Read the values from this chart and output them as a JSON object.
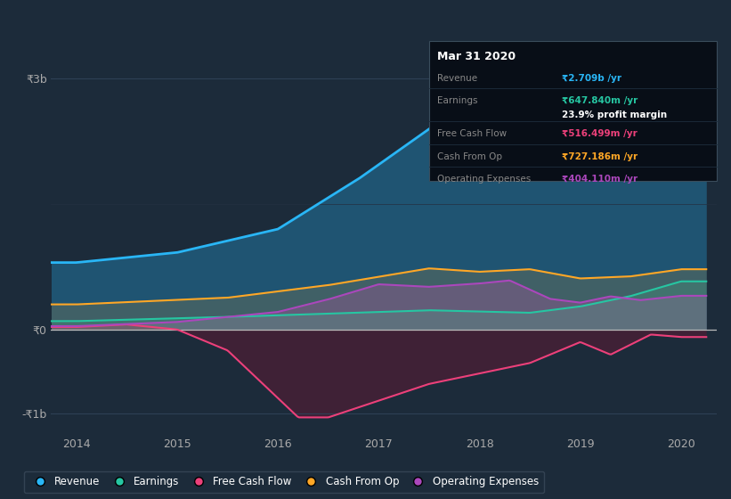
{
  "bg_color": "#1c2b3a",
  "plot_bg_color": "#1c2b3a",
  "grid_color": "#2a3a4a",
  "title_box": {
    "date": "Mar 31 2020",
    "revenue_label": "Revenue",
    "revenue_val": "₹2.709b /yr",
    "earnings_label": "Earnings",
    "earnings_val": "₹647.840m /yr",
    "margin_val": "23.9% profit margin",
    "fcf_label": "Free Cash Flow",
    "fcf_val": "₹516.499m /yr",
    "cashop_label": "Cash From Op",
    "cashop_val": "₹727.186m /yr",
    "opex_label": "Operating Expenses",
    "opex_val": "₹404.110m /yr"
  },
  "colors": {
    "revenue": "#29b6f6",
    "earnings": "#26c6a2",
    "fcf": "#ec407a",
    "cashfromop": "#ffa726",
    "opex": "#ab47bc"
  },
  "legend": [
    {
      "label": "Revenue",
      "color": "#29b6f6"
    },
    {
      "label": "Earnings",
      "color": "#26c6a2"
    },
    {
      "label": "Free Cash Flow",
      "color": "#ec407a"
    },
    {
      "label": "Cash From Op",
      "color": "#ffa726"
    },
    {
      "label": "Operating Expenses",
      "color": "#ab47bc"
    }
  ]
}
